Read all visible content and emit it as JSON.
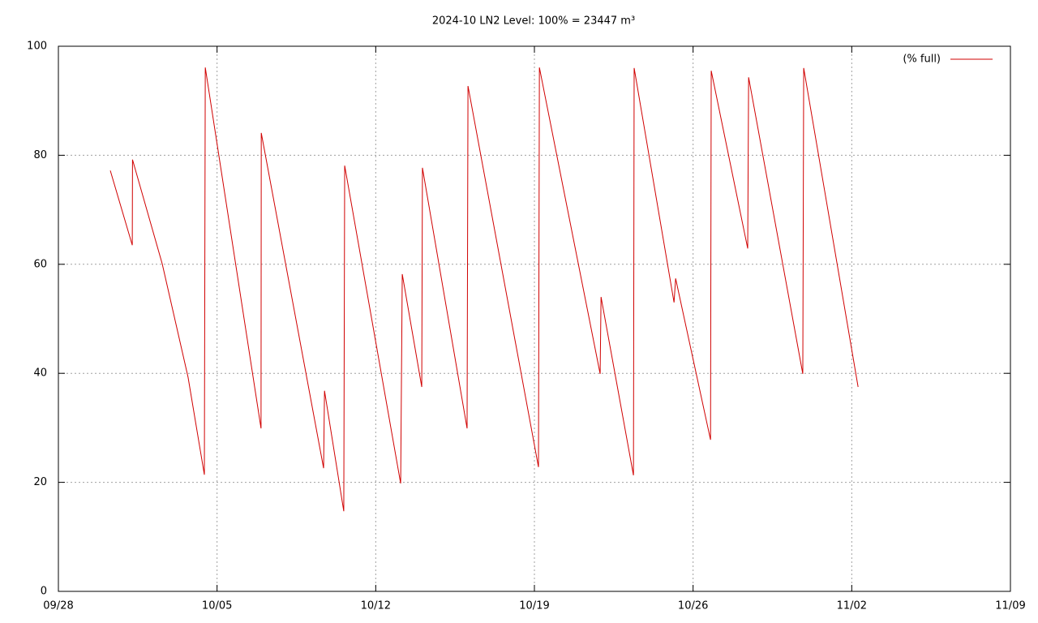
{
  "chart_data": {
    "type": "line",
    "title": "2024-10 LN2 Level: 100% = 23447 m³",
    "x": [
      2.29,
      3.26,
      3.27,
      4.58,
      5.72,
      6.44,
      6.48,
      8.94,
      8.95,
      11.7,
      11.74,
      12.59,
      12.63,
      15.1,
      15.17,
      16.03,
      16.06,
      18.03,
      18.07,
      21.18,
      21.22,
      23.9,
      23.94,
      25.37,
      25.4,
      27.16,
      27.23,
      28.77,
      28.8,
      30.41,
      30.45,
      32.84,
      32.88,
      35.28
    ],
    "series": [
      {
        "name": "(% full)",
        "color": "#d00000",
        "values": [
          77.2,
          63.5,
          79.2,
          60.1,
          39.3,
          21.4,
          96.1,
          29.9,
          84.1,
          22.6,
          36.8,
          14.7,
          78.1,
          19.8,
          58.2,
          37.5,
          77.7,
          29.9,
          92.7,
          22.8,
          96.1,
          39.9,
          54.0,
          21.3,
          96.0,
          53.0,
          57.4,
          27.8,
          95.5,
          62.9,
          94.3,
          39.9,
          96.0,
          37.5
        ]
      }
    ],
    "xlim": [
      0,
      42
    ],
    "xticks": [
      {
        "value": 0,
        "label": "09/28"
      },
      {
        "value": 7,
        "label": "10/05"
      },
      {
        "value": 14,
        "label": "10/12"
      },
      {
        "value": 21,
        "label": "10/19"
      },
      {
        "value": 28,
        "label": "10/26"
      },
      {
        "value": 35,
        "label": "11/02"
      },
      {
        "value": 42,
        "label": "11/09"
      }
    ],
    "ylim": [
      0,
      100
    ],
    "yticks": [
      0,
      20,
      40,
      60,
      80,
      100
    ],
    "grid": true,
    "legend": "top-right"
  }
}
